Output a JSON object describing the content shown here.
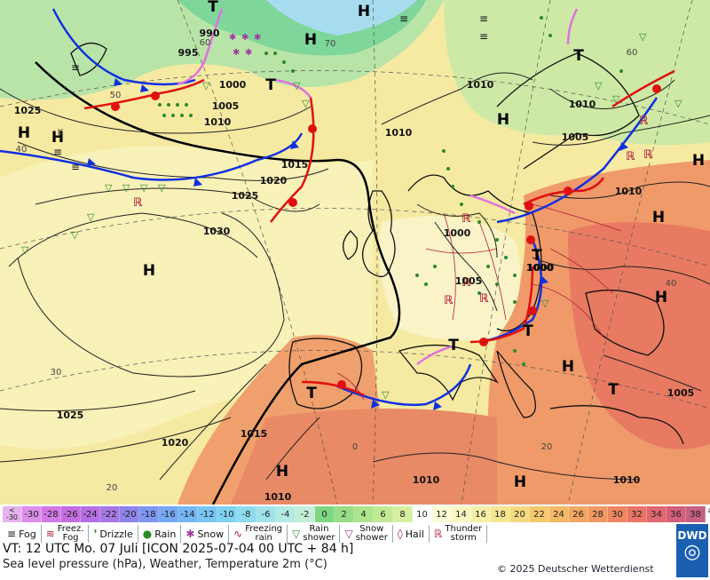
{
  "map": {
    "colors": {
      "ocean": "#f4f1c8",
      "sea_cold": "#b7e3c6",
      "warm": "#f3a06a",
      "hot": "#e7685a"
    },
    "pressure_centers": [
      {
        "type": "H",
        "label": "H"
      },
      {
        "type": "H",
        "label": "H"
      },
      {
        "type": "H",
        "label": "H"
      },
      {
        "type": "H",
        "label": "H"
      },
      {
        "type": "H",
        "label": "H"
      },
      {
        "type": "H",
        "label": "H"
      },
      {
        "type": "H",
        "label": "H"
      },
      {
        "type": "H",
        "label": "H"
      },
      {
        "type": "H",
        "label": "H"
      },
      {
        "type": "H",
        "label": "H"
      },
      {
        "type": "H",
        "label": "H"
      },
      {
        "type": "H",
        "label": "H"
      },
      {
        "type": "T",
        "label": "T"
      },
      {
        "type": "T",
        "label": "T"
      },
      {
        "type": "T",
        "label": "T"
      },
      {
        "type": "T",
        "label": "T"
      },
      {
        "type": "T",
        "label": "T"
      },
      {
        "type": "T",
        "label": "T"
      },
      {
        "type": "T",
        "label": "T"
      },
      {
        "type": "T",
        "label": "T"
      }
    ],
    "isobar_labels": [
      "995",
      "1000",
      "1005",
      "1010",
      "1015",
      "1020",
      "1025",
      "1025",
      "1010",
      "1010",
      "1030",
      "1000",
      "1005",
      "1000",
      "1010",
      "1005",
      "1010",
      "1025",
      "1020",
      "1015",
      "1010",
      "1010",
      "1005",
      "1000",
      "990",
      "1010"
    ],
    "temp_labels": [
      "50",
      "40",
      "60",
      "70",
      "30",
      "20",
      "0",
      "40",
      "60",
      "20",
      "K"
    ]
  },
  "legend": {
    "scale": [
      {
        "label": "<\n-30",
        "color": "#e5b3ef"
      },
      {
        "label": "-30",
        "color": "#dc8fe9"
      },
      {
        "label": "-28",
        "color": "#d278e4"
      },
      {
        "label": "-26",
        "color": "#c36ee0"
      },
      {
        "label": "-24",
        "color": "#b56ee3"
      },
      {
        "label": "-22",
        "color": "#a777e6"
      },
      {
        "label": "-20",
        "color": "#8d83eb"
      },
      {
        "label": "-18",
        "color": "#7e96f0"
      },
      {
        "label": "-16",
        "color": "#76a7f2"
      },
      {
        "label": "-14",
        "color": "#73b7f4"
      },
      {
        "label": "-12",
        "color": "#78c6f4"
      },
      {
        "label": "-10",
        "color": "#80d2f2"
      },
      {
        "label": "-8",
        "color": "#8edbee"
      },
      {
        "label": "-6",
        "color": "#a1e3ea"
      },
      {
        "label": "-4",
        "color": "#b3eae3"
      },
      {
        "label": "-2",
        "color": "#c4eed9"
      },
      {
        "label": "0",
        "color": "#7ed681"
      },
      {
        "label": "2",
        "color": "#96dd86"
      },
      {
        "label": "4",
        "color": "#ade48c"
      },
      {
        "label": "6",
        "color": "#c2ea94"
      },
      {
        "label": "8",
        "color": "#d7f0a0"
      },
      {
        "label": "10",
        "color": "#ffffff"
      },
      {
        "label": "12",
        "color": "#fbfbd6"
      },
      {
        "label": "14",
        "color": "#f8f7c0"
      },
      {
        "label": "16",
        "color": "#f6f0a7"
      },
      {
        "label": "18",
        "color": "#f6e691"
      },
      {
        "label": "20",
        "color": "#f5d97e"
      },
      {
        "label": "22",
        "color": "#f5c96e"
      },
      {
        "label": "24",
        "color": "#f4b964"
      },
      {
        "label": "26",
        "color": "#f3a862"
      },
      {
        "label": "28",
        "color": "#f29762"
      },
      {
        "label": "30",
        "color": "#ef8663"
      },
      {
        "label": "32",
        "color": "#ea7567"
      },
      {
        "label": "34",
        "color": "#e1666e"
      },
      {
        "label": "36",
        "color": "#d45f79"
      },
      {
        "label": "38",
        "color": "#c46083"
      },
      {
        "label": "≥40\n°C",
        "color": "#ffffff"
      }
    ],
    "weather": [
      {
        "symbol": "≡",
        "label": "Fog",
        "color": "#111"
      },
      {
        "symbol": "≋",
        "label": "Freez.\nFog",
        "color": "#b0213a"
      },
      {
        "symbol": "❜",
        "label": "Drizzle",
        "color": "#2a8a2a"
      },
      {
        "symbol": "●",
        "label": "Rain",
        "color": "#2a8a2a"
      },
      {
        "symbol": "✱",
        "label": "Snow",
        "color": "#9a3aa0"
      },
      {
        "symbol": "∿",
        "label": "Freezing\nrain",
        "color": "#b0213a"
      },
      {
        "symbol": "▽",
        "label": "Rain\nshower",
        "color": "#2a8a2a"
      },
      {
        "symbol": "▽",
        "label": "Snow\nshower",
        "color": "#9a3aa0"
      },
      {
        "symbol": "◊",
        "label": "Hail",
        "color": "#b0213a"
      },
      {
        "symbol": "ℝ",
        "label": "Thunder\nstorm",
        "color": "#b0213a"
      }
    ],
    "valid_time": "VT: 12 UTC Mo.   07 Juli [ICON 2025-07-04  00 UTC + 84 h]",
    "description": "Sea level pressure (hPa), Weather, Temperature 2m (°C)",
    "copyright": "© 2025 Deutscher Wetterdienst",
    "logo": "DWD"
  }
}
